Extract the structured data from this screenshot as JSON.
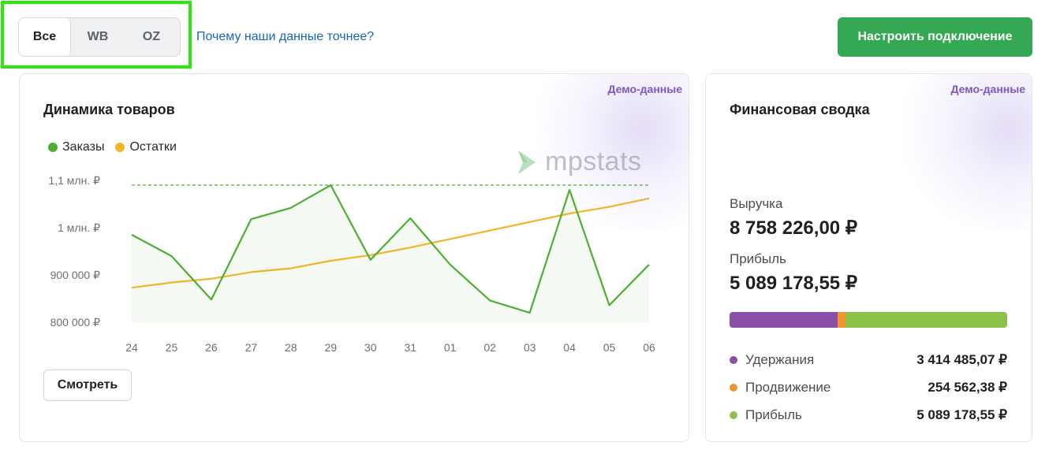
{
  "filter": {
    "tabs": [
      {
        "label": "Все",
        "active": true
      },
      {
        "label": "WB",
        "active": false
      },
      {
        "label": "OZ",
        "active": false
      }
    ]
  },
  "why_link": "Почему наши данные точнее?",
  "connect_button": "Настроить подключение",
  "dynamics_card": {
    "demo_label": "Демо-данные",
    "title": "Динамика товаров",
    "legend": [
      {
        "label": "Заказы",
        "color": "#4caf32"
      },
      {
        "label": "Остатки",
        "color": "#f0b429"
      }
    ],
    "logo_text": "mpstats",
    "button": "Смотреть"
  },
  "chart_data": {
    "type": "line",
    "x": [
      "24",
      "25",
      "26",
      "27",
      "28",
      "29",
      "30",
      "31",
      "01",
      "02",
      "03",
      "04",
      "05",
      "06"
    ],
    "y_ticks": [
      "1,1 млн. ₽",
      "1 млн. ₽",
      "900 000 ₽",
      "800 000 ₽"
    ],
    "y_tick_values": [
      1100000,
      1000000,
      900000,
      800000
    ],
    "ylim": [
      800000,
      1100000
    ],
    "max_line": 1090000,
    "series": [
      {
        "name": "Заказы",
        "color": "#4caf32",
        "values": [
          985000,
          940000,
          848000,
          1018000,
          1042000,
          1090000,
          932000,
          1020000,
          922000,
          846000,
          820000,
          1080000,
          836000,
          922000
        ]
      },
      {
        "name": "Остатки",
        "color": "#f0b429",
        "values": [
          873000,
          884000,
          892000,
          906000,
          914000,
          930000,
          942000,
          958000,
          976000,
          994000,
          1012000,
          1030000,
          1044000,
          1062000
        ]
      }
    ]
  },
  "finance_card": {
    "demo_label": "Демо-данные",
    "title": "Финансовая сводка",
    "revenue_label": "Выручка",
    "revenue_value": "8 758 226,00 ₽",
    "profit_label": "Прибыль",
    "profit_value": "5 089 178,55 ₽",
    "breakdown": [
      {
        "name": "Удержания",
        "value": "3 414 485,07 ₽",
        "color": "#8a4fa6",
        "share": 0.39
      },
      {
        "name": "Продвижение",
        "value": "254 562,38 ₽",
        "color": "#f0962d",
        "share": 0.029
      },
      {
        "name": "Прибыль",
        "value": "5 089 178,55 ₽",
        "color": "#8bc34a",
        "share": 0.581
      }
    ]
  }
}
